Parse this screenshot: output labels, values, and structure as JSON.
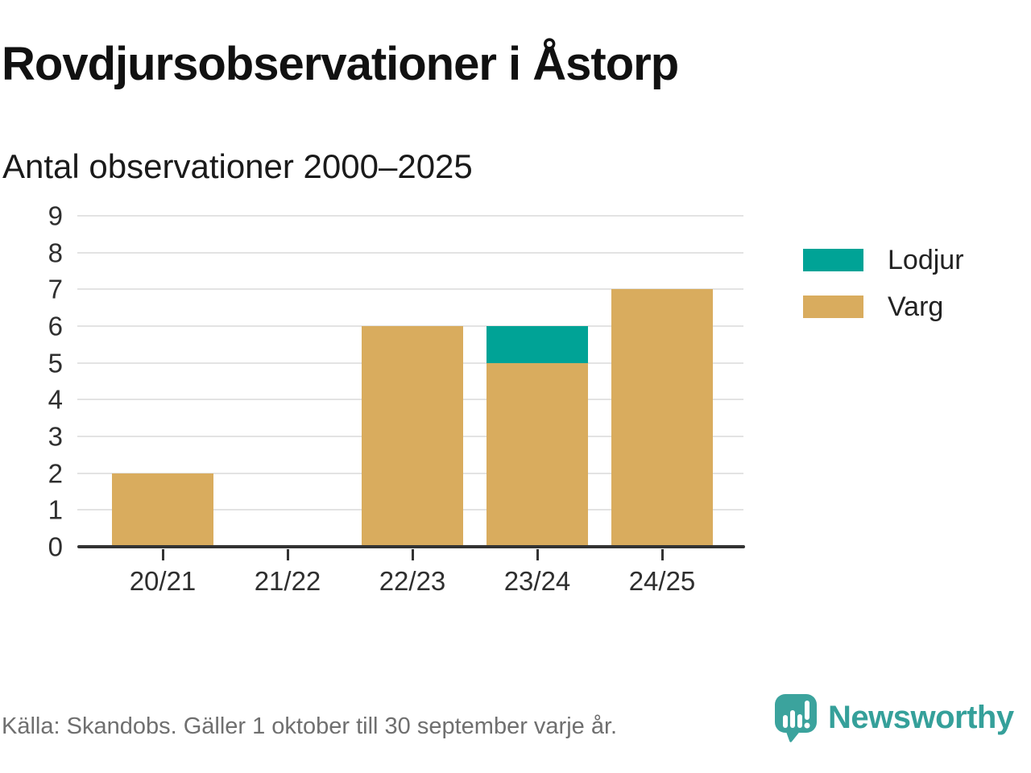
{
  "header": {
    "title": "Rovdjursobservationer i Åstorp",
    "subtitle": "Antal observationer 2000–2025"
  },
  "chart_data": {
    "type": "bar",
    "stacked": true,
    "categories": [
      "20/21",
      "21/22",
      "22/23",
      "23/24",
      "24/25"
    ],
    "series": [
      {
        "name": "Varg",
        "color": "#D9AC5E",
        "values": [
          2,
          0,
          6,
          5,
          7
        ]
      },
      {
        "name": "Lodjur",
        "color": "#00A396",
        "values": [
          0,
          0,
          0,
          1,
          0
        ]
      }
    ],
    "totals": [
      2,
      0,
      6,
      6,
      7
    ],
    "legend": [
      {
        "label": "Lodjur",
        "color": "#00A396"
      },
      {
        "label": "Varg",
        "color": "#D9AC5E"
      }
    ],
    "legend_position": "right",
    "title": "Rovdjursobservationer i Åstorp",
    "subtitle": "Antal observationer 2000–2025",
    "xlabel": "",
    "ylabel": "",
    "ylim": [
      0,
      9
    ],
    "yticks": [
      0,
      1,
      2,
      3,
      4,
      5,
      6,
      7,
      8,
      9
    ],
    "grid": true
  },
  "footer": {
    "source_note": "Källa: Skandobs. Gäller 1 oktober till 30 september varje år.",
    "brand_name": "Newsworthy"
  },
  "colors": {
    "lodjur": "#00A396",
    "varg": "#D9AC5E",
    "brand_teal": "#3BA39D",
    "axis": "#333333",
    "gridline": "#E3E3E3",
    "muted_text": "#6F6F6F"
  }
}
